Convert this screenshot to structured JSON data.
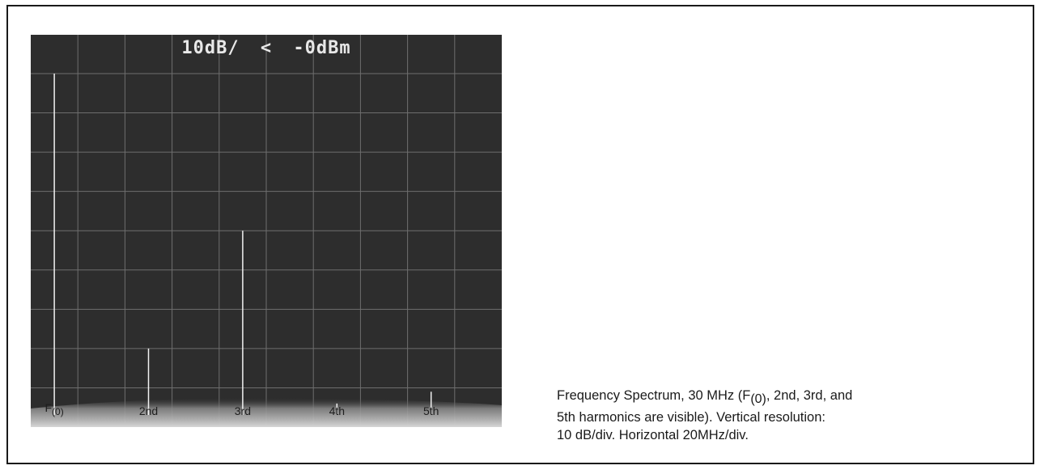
{
  "figure": {
    "header": {
      "scale": "10dB/",
      "marker": "<",
      "ref": "-0dBm"
    },
    "caption": {
      "line1_pre": "Frequency Spectrum, 30 MHz (F",
      "line1_sub": "(0)",
      "line1_post": ", 2nd, 3rd, and",
      "line2": "5th harmonics  are visible). Vertical resolution:",
      "line3": "10 dB/div. Horizontal 20MHz/div."
    }
  },
  "chart_data": {
    "type": "bar",
    "title": "",
    "xlabel": "",
    "ylabel": "",
    "grid": true,
    "background": "#2d2d2d",
    "trace_color": "#f2f2f2",
    "categories": [
      "F(0)",
      "2nd",
      "3rd",
      "4th",
      "5th"
    ],
    "tick_labels": [
      {
        "main": "F",
        "sub": "(0)"
      },
      {
        "main": "2nd",
        "sub": ""
      },
      {
        "main": "3rd",
        "sub": ""
      },
      {
        "main": "4th",
        "sub": ""
      },
      {
        "main": "5th",
        "sub": ""
      }
    ],
    "x_divisions": [
      0.5,
      2.5,
      4.5,
      6.5,
      8.5
    ],
    "values_db": [
      0,
      -70,
      -40,
      -84,
      -81
    ],
    "y_unit": "dB",
    "ylim_db": [
      -90,
      0
    ],
    "x_div_count": 10,
    "y_div_count": 9,
    "y_per_div": "10 dB/div",
    "x_per_div": "20MHz/div"
  }
}
